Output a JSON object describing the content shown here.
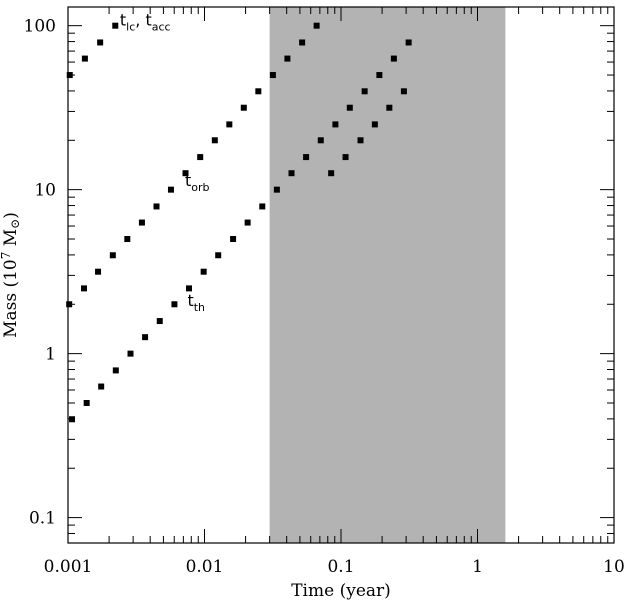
{
  "chart_data": {
    "type": "scatter",
    "title": "",
    "xlabel": "Time (year)",
    "ylabel": {
      "main": "Mass (10",
      "exp": "7",
      "unit": " M",
      "sun": "⊙",
      "close": ")"
    },
    "xscale": "log",
    "yscale": "log",
    "xlim": [
      0.001,
      10
    ],
    "ylim": [
      0.07,
      130
    ],
    "xticks": [
      {
        "value": 0.001,
        "label": "0.001"
      },
      {
        "value": 0.01,
        "label": "0.01"
      },
      {
        "value": 0.1,
        "label": "0.1"
      },
      {
        "value": 1,
        "label": "1"
      },
      {
        "value": 10,
        "label": "10"
      }
    ],
    "yticks": [
      {
        "value": 0.1,
        "label": "0.1"
      },
      {
        "value": 1,
        "label": "1"
      },
      {
        "value": 10,
        "label": "10"
      },
      {
        "value": 100,
        "label": "100"
      }
    ],
    "grid": false,
    "legend": "none",
    "shaded_region": {
      "x": [
        0.03,
        1.6
      ],
      "color": "#b3b3b3"
    },
    "marker_color": "#000000",
    "series": [
      {
        "id": "tlc_tacc",
        "label": {
          "t1": "t",
          "s1": "lc",
          "sep": ",  ",
          "t2": "t",
          "s2": "acc"
        },
        "label_at": {
          "x": 0.0024,
          "y": 100
        },
        "x": [
          0.00103,
          0.00133,
          0.00172,
          0.00222
        ],
        "y": [
          50,
          63,
          79,
          100
        ]
      },
      {
        "id": "torb",
        "label": {
          "t1": "t",
          "s1": "orb"
        },
        "label_at": {
          "x": 0.0072,
          "y": 10.5
        },
        "x": [
          0.00102,
          0.00131,
          0.00166,
          0.00213,
          0.00272,
          0.00348,
          0.00445,
          0.00568,
          0.00726,
          0.0093,
          0.0119,
          0.0152,
          0.0194,
          0.0248,
          0.0317,
          0.0405,
          0.0519,
          0.0663,
          0.0847,
          0.108,
          0.139,
          0.177,
          0.226,
          0.289
        ],
        "y": [
          2.0,
          2.5,
          3.16,
          3.98,
          5.0,
          6.3,
          7.9,
          10,
          12.6,
          15.8,
          20,
          25,
          31.6,
          39.8,
          50,
          63,
          79,
          100,
          12.6,
          15.8,
          20,
          25,
          31.6,
          39.8
        ]
      },
      {
        "id": "tth",
        "label": {
          "t1": "t",
          "s1": "th"
        },
        "label_at": {
          "x": 0.0075,
          "y": 1.95
        },
        "x": [
          0.00107,
          0.00137,
          0.00175,
          0.00224,
          0.00287,
          0.00367,
          0.0047,
          0.00602,
          0.0077,
          0.00986,
          0.0126,
          0.0162,
          0.0207,
          0.0265,
          0.0339,
          0.0434,
          0.0555,
          0.0711,
          0.091,
          0.116,
          0.149,
          0.191,
          0.244,
          0.313
        ],
        "y": [
          0.398,
          0.5,
          0.63,
          0.79,
          1.0,
          1.26,
          1.58,
          2.0,
          2.5,
          3.16,
          3.98,
          5.0,
          6.3,
          7.9,
          10,
          12.6,
          15.8,
          20,
          25,
          31.6,
          39.8,
          50,
          63,
          79
        ]
      }
    ]
  }
}
